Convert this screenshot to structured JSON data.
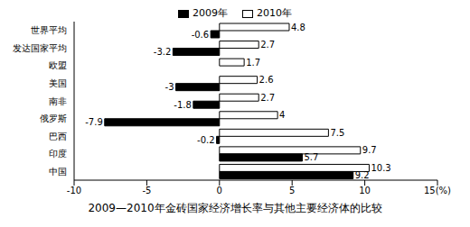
{
  "chart_data": {
    "type": "bar",
    "orientation": "horizontal",
    "title": "2009—2010年金砖国家经济增长率与其他主要经济体的比较",
    "categories": [
      "世界平均",
      "发达国家平均",
      "欧盟",
      "美国",
      "南非",
      "俄罗斯",
      "巴西",
      "印度",
      "中国"
    ],
    "series": [
      {
        "name": "2009年",
        "color": "#000000",
        "values": [
          -0.6,
          -3.2,
          0,
          -3,
          -1.8,
          -7.9,
          -0.2,
          5.7,
          9.2
        ]
      },
      {
        "name": "2010年",
        "color": "#ffffff",
        "values": [
          4.8,
          2.7,
          1.7,
          2.6,
          2.7,
          4,
          7.5,
          9.7,
          10.3
        ]
      }
    ],
    "xlim": [
      -10,
      15
    ],
    "xticks": [
      -10,
      -5,
      0,
      5,
      10,
      {
        "value": 15,
        "label": "15(%)"
      }
    ],
    "data_labels": true,
    "legend": "top",
    "grid": false
  }
}
